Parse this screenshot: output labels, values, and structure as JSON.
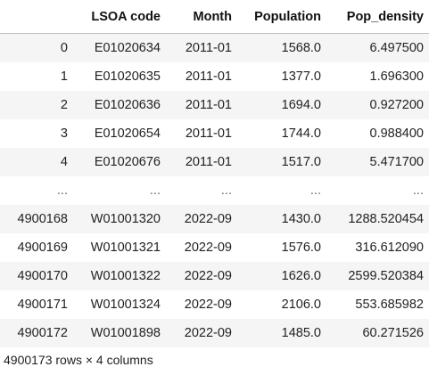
{
  "dataframe": {
    "columns": [
      "",
      "LSOA code",
      "Month",
      "Population",
      "Pop_density"
    ],
    "rows": [
      [
        "0",
        "E01020634",
        "2011-01",
        "1568.0",
        "6.497500"
      ],
      [
        "1",
        "E01020635",
        "2011-01",
        "1377.0",
        "1.696300"
      ],
      [
        "2",
        "E01020636",
        "2011-01",
        "1694.0",
        "0.927200"
      ],
      [
        "3",
        "E01020654",
        "2011-01",
        "1744.0",
        "0.988400"
      ],
      [
        "4",
        "E01020676",
        "2011-01",
        "1517.0",
        "5.471700"
      ],
      [
        "...",
        "...",
        "...",
        "...",
        "..."
      ],
      [
        "4900168",
        "W01001320",
        "2022-09",
        "1430.0",
        "1288.520454"
      ],
      [
        "4900169",
        "W01001321",
        "2022-09",
        "1576.0",
        "316.612090"
      ],
      [
        "4900170",
        "W01001322",
        "2022-09",
        "1626.0",
        "2599.520384"
      ],
      [
        "4900171",
        "W01001324",
        "2022-09",
        "2106.0",
        "553.685982"
      ],
      [
        "4900172",
        "W01001898",
        "2022-09",
        "1485.0",
        "60.271526"
      ]
    ],
    "shape_text": "4900173 rows × 4 columns"
  }
}
